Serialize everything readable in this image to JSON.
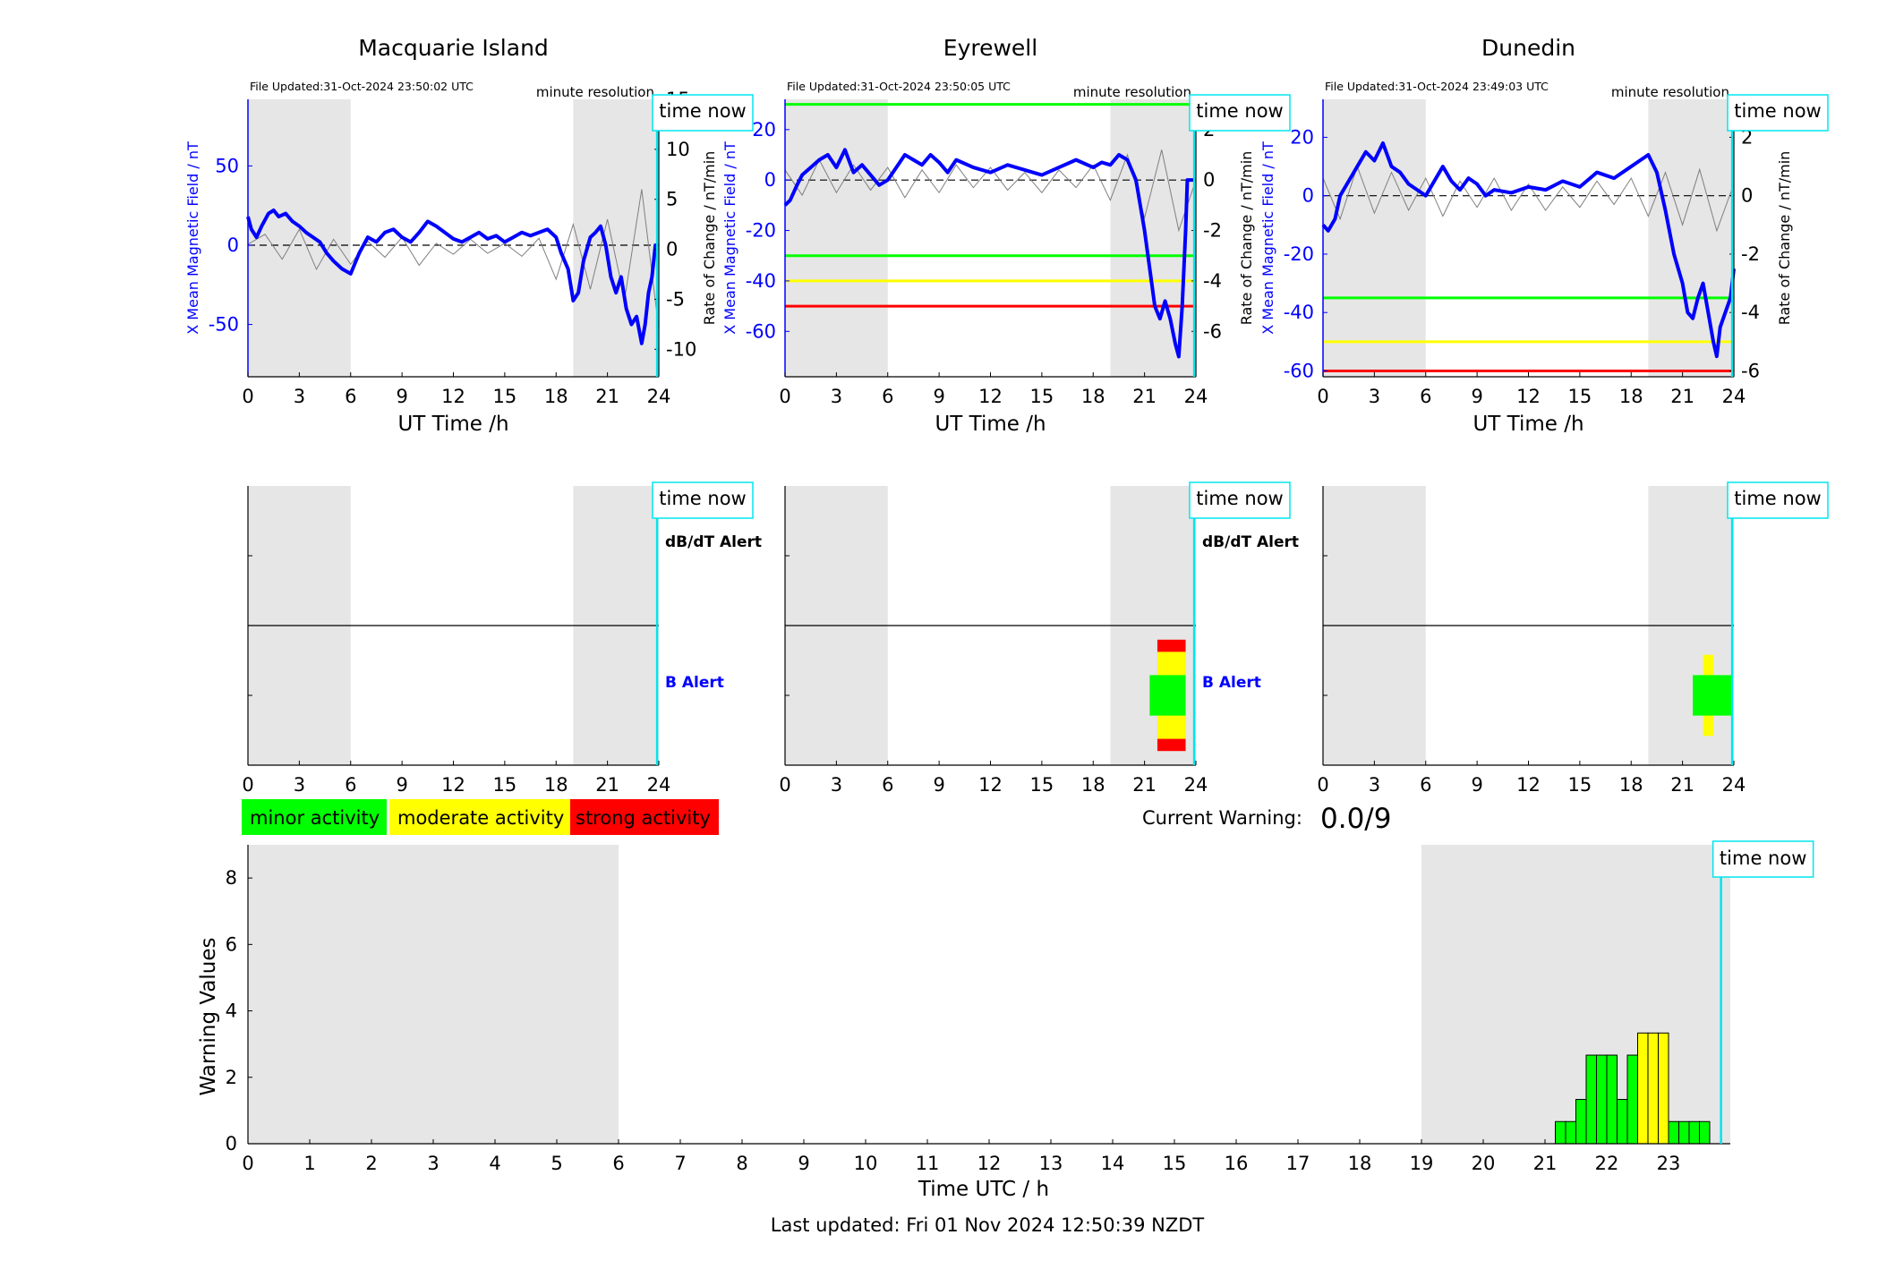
{
  "page": {
    "current_warning_label": "Current Warning:",
    "current_warning_value": "0.0/9",
    "last_updated": "Last updated: Fri 01 Nov 2024 12:50:39 NZDT"
  },
  "legend": [
    {
      "label": "minor activity",
      "color": "#00ff00"
    },
    {
      "label": "moderate activity",
      "color": "#ffff00"
    },
    {
      "label": "strong activity",
      "color": "#ff0000"
    }
  ],
  "colors": {
    "mean_field": "#0000ff",
    "rate_of_change": "#7f7f7f",
    "time_now": "#00e5ee",
    "shade": "#e6e6e6",
    "b_alert_label": "#0000ff"
  },
  "labels": {
    "time_now": "time now",
    "dbdt_alert": "dB/dT Alert",
    "b_alert": "B Alert",
    "minute_resolution": "minute resolution",
    "x_axis": "UT Time /h",
    "y_left": "X Mean Magnetic Field / nT",
    "y_right": "Rate of Change / nT/min"
  },
  "chart_data": [
    {
      "type": "line",
      "title": "Macquarie Island",
      "subtitle": "File Updated:31-Oct-2024 23:50:02 UTC",
      "xlabel": "UT Time /h",
      "ylabel": "X Mean Magnetic Field / nT",
      "y2label": "Rate of Change / nT/min",
      "xlim": [
        0,
        24
      ],
      "ylim": [
        -83,
        92
      ],
      "y2lim": [
        -12.75,
        15
      ],
      "xticks": [
        0,
        3,
        6,
        9,
        12,
        15,
        18,
        21,
        24
      ],
      "yticks": [
        -50,
        0,
        50
      ],
      "y2ticks": [
        -10,
        -5,
        0,
        5,
        10,
        15
      ],
      "shaded": [
        [
          0,
          6
        ],
        [
          19,
          24
        ]
      ],
      "time_now": 23.9,
      "thresholds": [],
      "mean_field": {
        "x": [
          0,
          0.2,
          0.5,
          0.8,
          1.2,
          1.5,
          1.8,
          2.2,
          2.6,
          3,
          3.4,
          3.8,
          4.2,
          4.6,
          5,
          5.5,
          6,
          6.5,
          7,
          7.5,
          8,
          8.5,
          9,
          9.5,
          10,
          10.5,
          11,
          11.5,
          12,
          12.5,
          13,
          13.5,
          14,
          14.5,
          15,
          15.5,
          16,
          16.5,
          17,
          17.5,
          18,
          18.3,
          18.7,
          19,
          19.3,
          19.6,
          20,
          20.3,
          20.6,
          20.9,
          21.2,
          21.5,
          21.8,
          22.1,
          22.4,
          22.7,
          23,
          23.2,
          23.4,
          23.6,
          23.8,
          24
        ],
        "y": [
          18,
          10,
          5,
          12,
          20,
          22,
          18,
          20,
          15,
          12,
          8,
          5,
          2,
          -5,
          -10,
          -15,
          -18,
          -5,
          5,
          2,
          8,
          10,
          5,
          2,
          8,
          15,
          12,
          8,
          4,
          2,
          5,
          8,
          4,
          6,
          2,
          5,
          8,
          6,
          8,
          10,
          5,
          -5,
          -15,
          -35,
          -30,
          -10,
          5,
          8,
          12,
          0,
          -20,
          -30,
          -20,
          -40,
          -50,
          -45,
          -62,
          -50,
          -30,
          -20,
          0,
          0
        ]
      },
      "rate_of_change": {
        "x": [
          0,
          1,
          2,
          3,
          4,
          5,
          6,
          7,
          8,
          9,
          10,
          11,
          12,
          13,
          14,
          15,
          16,
          17,
          18,
          19,
          20,
          21,
          22,
          23,
          24
        ],
        "y": [
          0.5,
          1.5,
          -1,
          2,
          -2,
          1,
          -1.5,
          0.8,
          -0.8,
          1.2,
          -1.6,
          0.6,
          -0.5,
          1,
          -0.4,
          0.6,
          -0.7,
          1.1,
          -3,
          2.5,
          -4,
          3,
          -5,
          6,
          -8
        ]
      }
    },
    {
      "type": "line",
      "title": "Eyrewell",
      "subtitle": "File Updated:31-Oct-2024 23:50:05 UTC",
      "xlabel": "UT Time /h",
      "ylabel": "X Mean Magnetic Field / nT",
      "y2label": "Rate of Change / nT/min",
      "xlim": [
        0,
        24
      ],
      "ylim": [
        -78,
        32
      ],
      "y2lim": [
        -7.8,
        3.2
      ],
      "xticks": [
        0,
        3,
        6,
        9,
        12,
        15,
        18,
        21,
        24
      ],
      "yticks": [
        -60,
        -40,
        -20,
        0,
        20
      ],
      "y2ticks": [
        -6,
        -4,
        -2,
        0,
        2
      ],
      "shaded": [
        [
          0,
          6
        ],
        [
          19,
          24
        ]
      ],
      "time_now": 23.9,
      "thresholds": [
        {
          "value": 30,
          "color": "#00ff00"
        },
        {
          "value": -30,
          "color": "#00ff00"
        },
        {
          "value": -40,
          "color": "#ffff00"
        },
        {
          "value": -50,
          "color": "#ff0000"
        }
      ],
      "mean_field": {
        "x": [
          0,
          0.3,
          0.7,
          1,
          1.5,
          2,
          2.5,
          3,
          3.5,
          4,
          4.5,
          5,
          5.5,
          6,
          6.5,
          7,
          7.5,
          8,
          8.5,
          9,
          9.5,
          10,
          11,
          12,
          13,
          14,
          15,
          16,
          17,
          18,
          18.5,
          19,
          19.5,
          20,
          20.5,
          21,
          21.3,
          21.6,
          21.9,
          22.2,
          22.5,
          22.8,
          23,
          23.2,
          23.4,
          23.5,
          23.6,
          24
        ],
        "y": [
          -10,
          -8,
          -2,
          2,
          5,
          8,
          10,
          5,
          12,
          3,
          6,
          2,
          -2,
          0,
          5,
          10,
          8,
          6,
          10,
          7,
          3,
          8,
          5,
          3,
          6,
          4,
          2,
          5,
          8,
          5,
          7,
          6,
          10,
          8,
          0,
          -20,
          -35,
          -50,
          -55,
          -48,
          -55,
          -65,
          -70,
          -50,
          -20,
          0,
          0,
          0
        ]
      },
      "rate_of_change": {
        "x": [
          0,
          1,
          2,
          3,
          4,
          5,
          6,
          7,
          8,
          9,
          10,
          11,
          12,
          13,
          14,
          15,
          16,
          17,
          18,
          19,
          20,
          21,
          22,
          23,
          24
        ],
        "y": [
          0.4,
          -0.6,
          0.8,
          -0.5,
          0.6,
          -0.4,
          0.5,
          -0.7,
          0.4,
          -0.5,
          0.6,
          -0.3,
          0.5,
          -0.4,
          0.3,
          -0.5,
          0.4,
          -0.3,
          0.6,
          -0.8,
          1,
          -1.5,
          1.2,
          -2,
          0
        ]
      }
    },
    {
      "type": "line",
      "title": "Dunedin",
      "subtitle": "File Updated:31-Oct-2024 23:49:03 UTC",
      "xlabel": "UT Time /h",
      "ylabel": "X Mean Magnetic Field / nT",
      "y2label": "Rate of Change / nT/min",
      "xlim": [
        0,
        24
      ],
      "ylim": [
        -62,
        33
      ],
      "y2lim": [
        -6.2,
        3.3
      ],
      "xticks": [
        0,
        3,
        6,
        9,
        12,
        15,
        18,
        21,
        24
      ],
      "yticks": [
        -60,
        -40,
        -20,
        0,
        20
      ],
      "y2ticks": [
        -6,
        -4,
        -2,
        0,
        2
      ],
      "shaded": [
        [
          0,
          6
        ],
        [
          19,
          24
        ]
      ],
      "time_now": 23.9,
      "thresholds": [
        {
          "value": -35,
          "color": "#00ff00"
        },
        {
          "value": -50,
          "color": "#ffff00"
        },
        {
          "value": -60,
          "color": "#ff0000"
        }
      ],
      "mean_field": {
        "x": [
          0,
          0.3,
          0.7,
          1,
          1.5,
          2,
          2.5,
          3,
          3.5,
          4,
          4.5,
          5,
          5.5,
          6,
          6.5,
          7,
          7.5,
          8,
          8.5,
          9,
          9.5,
          10,
          11,
          12,
          13,
          14,
          15,
          16,
          17,
          18,
          18.5,
          19,
          19.5,
          20,
          20.5,
          21,
          21.3,
          21.6,
          21.9,
          22.2,
          22.5,
          22.8,
          23,
          23.2,
          23.5,
          23.8,
          24
        ],
        "y": [
          -10,
          -12,
          -8,
          0,
          5,
          10,
          15,
          12,
          18,
          10,
          8,
          4,
          2,
          0,
          5,
          10,
          5,
          2,
          6,
          4,
          0,
          2,
          1,
          3,
          2,
          5,
          3,
          8,
          6,
          10,
          12,
          14,
          8,
          -5,
          -20,
          -30,
          -40,
          -42,
          -35,
          -30,
          -40,
          -50,
          -55,
          -45,
          -40,
          -35,
          -25
        ]
      },
      "rate_of_change": {
        "x": [
          0,
          1,
          2,
          3,
          4,
          5,
          6,
          7,
          8,
          9,
          10,
          11,
          12,
          13,
          14,
          15,
          16,
          17,
          18,
          19,
          20,
          21,
          22,
          23,
          24
        ],
        "y": [
          0.6,
          -0.8,
          1,
          -0.6,
          0.8,
          -0.5,
          0.6,
          -0.7,
          0.5,
          -0.4,
          0.6,
          -0.5,
          0.4,
          -0.5,
          0.3,
          -0.4,
          0.5,
          -0.3,
          0.6,
          -0.7,
          0.8,
          -1,
          0.9,
          -1.2,
          0.4
        ]
      }
    },
    {
      "type": "bar",
      "station": "Macquarie Island",
      "labels": [
        "dB/dT Alert",
        "B Alert"
      ],
      "xlim": [
        0,
        24
      ],
      "xticks": [
        0,
        3,
        6,
        9,
        12,
        15,
        18,
        21,
        24
      ],
      "shaded": [
        [
          0,
          6
        ],
        [
          19,
          24
        ]
      ],
      "time_now": 23.9,
      "alerts": []
    },
    {
      "type": "bar",
      "station": "Eyrewell",
      "labels": [
        "dB/dT Alert",
        "B Alert"
      ],
      "xlim": [
        0,
        24
      ],
      "xticks": [
        0,
        3,
        6,
        9,
        12,
        15,
        18,
        21,
        24
      ],
      "shaded": [
        [
          0,
          6
        ],
        [
          19,
          24
        ]
      ],
      "time_now": 23.9,
      "alerts": [
        {
          "x0": 21.75,
          "x1": 23.4,
          "level": "strong",
          "color": "#ff0000",
          "half_height": 0.55
        },
        {
          "x0": 21.75,
          "x1": 23.4,
          "level": "moderate",
          "color": "#ffff00",
          "half_height": 0.43
        },
        {
          "x0": 21.3,
          "x1": 23.4,
          "level": "minor",
          "color": "#00ff00",
          "half_height": 0.2
        }
      ]
    },
    {
      "type": "bar",
      "station": "Dunedin",
      "labels": [],
      "xlim": [
        0,
        24
      ],
      "xticks": [
        0,
        3,
        6,
        9,
        12,
        15,
        18,
        21,
        24
      ],
      "shaded": [
        [
          0,
          6
        ],
        [
          19,
          24
        ]
      ],
      "time_now": 23.9,
      "alerts": [
        {
          "x0": 22.2,
          "x1": 22.8,
          "level": "moderate",
          "color": "#ffff00",
          "half_height": 0.4
        },
        {
          "x0": 21.6,
          "x1": 23.9,
          "level": "minor",
          "color": "#00ff00",
          "half_height": 0.2
        }
      ]
    },
    {
      "type": "bar",
      "xlabel": "Time UTC / h",
      "ylabel": "Warning Values",
      "xlim": [
        0,
        24
      ],
      "ylim": [
        0,
        9
      ],
      "xticks": [
        0,
        1,
        2,
        3,
        4,
        5,
        6,
        7,
        8,
        9,
        10,
        11,
        12,
        13,
        14,
        15,
        16,
        17,
        18,
        19,
        20,
        21,
        22,
        23
      ],
      "yticks": [
        0,
        2,
        4,
        6,
        8
      ],
      "shaded": [
        [
          0,
          6
        ],
        [
          19,
          24
        ]
      ],
      "time_now": 23.85,
      "bar_width": 0.1667,
      "bars": [
        {
          "x": 21.1667,
          "value": 0.6667,
          "color": "#00ff00"
        },
        {
          "x": 21.3333,
          "value": 0.6667,
          "color": "#00ff00"
        },
        {
          "x": 21.5,
          "value": 1.3333,
          "color": "#00ff00"
        },
        {
          "x": 21.6667,
          "value": 2.6667,
          "color": "#00ff00"
        },
        {
          "x": 21.8333,
          "value": 2.6667,
          "color": "#00ff00"
        },
        {
          "x": 22.0,
          "value": 2.6667,
          "color": "#00ff00"
        },
        {
          "x": 22.1667,
          "value": 1.3333,
          "color": "#00ff00"
        },
        {
          "x": 22.3333,
          "value": 2.6667,
          "color": "#00ff00"
        },
        {
          "x": 22.5,
          "value": 3.3333,
          "color": "#ffff00"
        },
        {
          "x": 22.6667,
          "value": 3.3333,
          "color": "#ffff00"
        },
        {
          "x": 22.8333,
          "value": 3.3333,
          "color": "#ffff00"
        },
        {
          "x": 23.0,
          "value": 0.6667,
          "color": "#00ff00"
        },
        {
          "x": 23.1667,
          "value": 0.6667,
          "color": "#00ff00"
        },
        {
          "x": 23.3333,
          "value": 0.6667,
          "color": "#00ff00"
        },
        {
          "x": 23.5,
          "value": 0.6667,
          "color": "#00ff00"
        }
      ]
    }
  ]
}
